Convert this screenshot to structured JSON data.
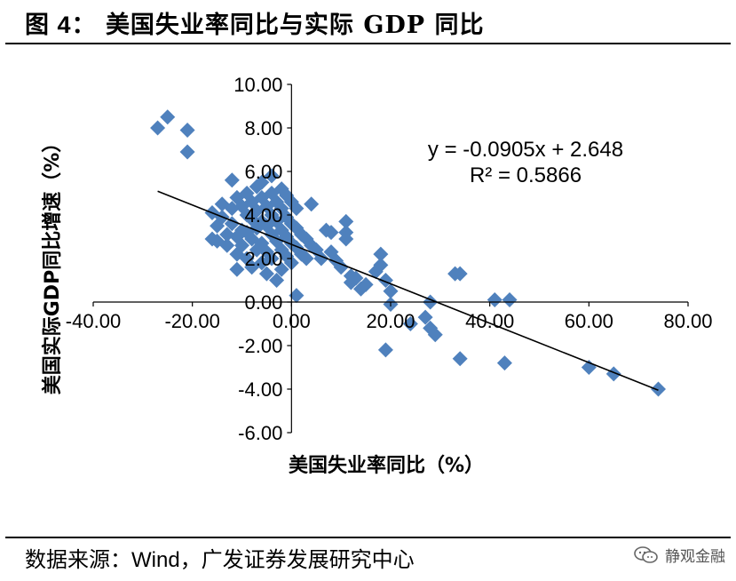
{
  "header": {
    "figure_label": "图 4",
    "title": "美国失业率同比与实际 GDP 同比"
  },
  "source": {
    "prefix": "数据来源：",
    "wind": "Wind",
    "suffix": "，广发证券发展研究中心"
  },
  "watermark": {
    "icon": "wechat-icon",
    "text": "静观金融"
  },
  "colors": {
    "marker": "#4F81BD",
    "trendline": "#000000",
    "axis": "#000000"
  },
  "chart_data": {
    "type": "scatter",
    "xlabel": "美国失业率同比（%）",
    "ylabel": "美国实际GDP同比增速（%）",
    "xlim": [
      -40,
      80
    ],
    "ylim": [
      -6,
      10
    ],
    "xticks": [
      -40,
      -20,
      0,
      20,
      40,
      60,
      80
    ],
    "yticks": [
      -6,
      -4,
      -2,
      0,
      2,
      4,
      6,
      8,
      10
    ],
    "xtick_labels": [
      "-40.00",
      "-20.00",
      "0.00",
      "20.00",
      "40.00",
      "60.00",
      "80.00"
    ],
    "ytick_labels": [
      "-6.00",
      "-4.00",
      "-2.00",
      "0.00",
      "2.00",
      "4.00",
      "6.00",
      "8.00",
      "10.00"
    ],
    "grid": false,
    "trendline": {
      "slope": -0.0905,
      "intercept": 2.648,
      "x_range": [
        -27,
        74
      ]
    },
    "equation": "y = -0.0905x + 2.648",
    "r_squared": "R² = 0.5866",
    "points": [
      [
        -27,
        8.0
      ],
      [
        -25,
        8.5
      ],
      [
        -21,
        7.9
      ],
      [
        -21,
        6.9
      ],
      [
        -16,
        4.1
      ],
      [
        -15,
        3.5
      ],
      [
        -15,
        2.8
      ],
      [
        -16,
        2.9
      ],
      [
        -14,
        4.5
      ],
      [
        -14,
        3.9
      ],
      [
        -13,
        3.1
      ],
      [
        -13,
        2.6
      ],
      [
        -12,
        5.6
      ],
      [
        -12,
        4.3
      ],
      [
        -12,
        3.6
      ],
      [
        -11,
        4.8
      ],
      [
        -11,
        3.0
      ],
      [
        -11,
        2.2
      ],
      [
        -11,
        1.5
      ],
      [
        -10,
        4.4
      ],
      [
        -10,
        3.3
      ],
      [
        -10,
        2.6
      ],
      [
        -9,
        5.0
      ],
      [
        -9,
        4.0
      ],
      [
        -9,
        3.2
      ],
      [
        -9,
        2.0
      ],
      [
        -8,
        4.6
      ],
      [
        -8,
        3.8
      ],
      [
        -8,
        2.9
      ],
      [
        -8,
        1.6
      ],
      [
        -7,
        5.3
      ],
      [
        -7,
        4.2
      ],
      [
        -7,
        3.4
      ],
      [
        -7,
        2.4
      ],
      [
        -6,
        5.5
      ],
      [
        -6,
        4.8
      ],
      [
        -6,
        3.7
      ],
      [
        -6,
        2.7
      ],
      [
        -6,
        1.8
      ],
      [
        -5,
        4.4
      ],
      [
        -5,
        3.5
      ],
      [
        -5,
        2.3
      ],
      [
        -5,
        1.3
      ],
      [
        -4,
        5.8
      ],
      [
        -4,
        5.0
      ],
      [
        -4,
        4.0
      ],
      [
        -4,
        3.1
      ],
      [
        -4,
        2.0
      ],
      [
        -3,
        4.6
      ],
      [
        -3,
        3.7
      ],
      [
        -3,
        2.8
      ],
      [
        -3,
        1.0
      ],
      [
        -2,
        5.2
      ],
      [
        -2,
        4.3
      ],
      [
        -2,
        3.3
      ],
      [
        -2,
        2.4
      ],
      [
        -2,
        1.5
      ],
      [
        -1,
        4.9
      ],
      [
        -1,
        3.9
      ],
      [
        -1,
        3.0
      ],
      [
        -1,
        2.1
      ],
      [
        0,
        4.6
      ],
      [
        0,
        3.6
      ],
      [
        0,
        2.7
      ],
      [
        0,
        1.8
      ],
      [
        1,
        4.3
      ],
      [
        1,
        3.4
      ],
      [
        1,
        2.5
      ],
      [
        1,
        0.3
      ],
      [
        2,
        3.1
      ],
      [
        2,
        2.2
      ],
      [
        3,
        2.9
      ],
      [
        3,
        2.0
      ],
      [
        4,
        4.5
      ],
      [
        4,
        2.6
      ],
      [
        5,
        2.4
      ],
      [
        6,
        2.0
      ],
      [
        7,
        3.3
      ],
      [
        8,
        3.2
      ],
      [
        8,
        2.3
      ],
      [
        9,
        1.9
      ],
      [
        10,
        1.6
      ],
      [
        11,
        3.7
      ],
      [
        11,
        3.2
      ],
      [
        11,
        2.9
      ],
      [
        12,
        1.2
      ],
      [
        12,
        0.9
      ],
      [
        13,
        1.1
      ],
      [
        14,
        0.6
      ],
      [
        15,
        0.8
      ],
      [
        17,
        1.4
      ],
      [
        18,
        2.2
      ],
      [
        18,
        1.7
      ],
      [
        19,
        1.0
      ],
      [
        20,
        0.5
      ],
      [
        20,
        -0.1
      ],
      [
        19,
        -2.2
      ],
      [
        24,
        -1.0
      ],
      [
        27,
        -0.7
      ],
      [
        28,
        0.0
      ],
      [
        28,
        -1.2
      ],
      [
        29,
        -1.5
      ],
      [
        33,
        1.3
      ],
      [
        34,
        1.3
      ],
      [
        34,
        -2.6
      ],
      [
        41,
        0.1
      ],
      [
        44,
        0.1
      ],
      [
        43,
        -2.8
      ],
      [
        60,
        -3.0
      ],
      [
        65,
        -3.3
      ],
      [
        74,
        -4.0
      ]
    ]
  }
}
